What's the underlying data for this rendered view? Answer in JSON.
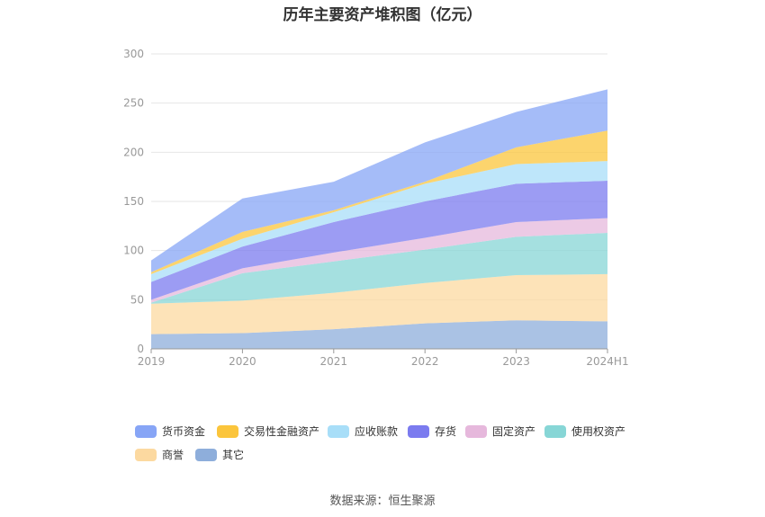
{
  "title": "历年主要资产堆积图（亿元）",
  "source": "数据来源：恒生聚源",
  "chart_data": {
    "type": "area",
    "stacked": true,
    "title": "历年主要资产堆积图（亿元）",
    "xlabel": "",
    "ylabel": "",
    "ylim": [
      0,
      300
    ],
    "yticks": [
      0,
      50,
      100,
      150,
      200,
      250,
      300
    ],
    "grid": true,
    "legend_position": "bottom",
    "categories": [
      "2019",
      "2020",
      "2021",
      "2022",
      "2023",
      "2024H1"
    ],
    "series": [
      {
        "name": "其它",
        "color": "#8eaedb",
        "values": [
          15,
          16,
          20,
          26,
          29,
          28
        ]
      },
      {
        "name": "商誉",
        "color": "#fcd9a0",
        "values": [
          31,
          33,
          37,
          41,
          46,
          48
        ]
      },
      {
        "name": "使用权资产",
        "color": "#87d6d6",
        "values": [
          1,
          28,
          32,
          34,
          39,
          42
        ]
      },
      {
        "name": "固定资产",
        "color": "#e6b8dc",
        "values": [
          3,
          5,
          9,
          12,
          15,
          15
        ]
      },
      {
        "name": "存货",
        "color": "#7b7bef",
        "values": [
          18,
          22,
          31,
          37,
          39,
          38
        ]
      },
      {
        "name": "应收账款",
        "color": "#a8def8",
        "values": [
          8,
          8,
          10,
          18,
          20,
          20
        ]
      },
      {
        "name": "交易性金融资产",
        "color": "#fbc53c",
        "values": [
          2,
          7,
          2,
          2,
          17,
          31
        ]
      },
      {
        "name": "货币资金",
        "color": "#87a5f6",
        "values": [
          12,
          34,
          29,
          40,
          36,
          42
        ]
      }
    ]
  },
  "legend": [
    {
      "name": "货币资金",
      "color": "#87a5f6"
    },
    {
      "name": "交易性金融资产",
      "color": "#fbc53c"
    },
    {
      "name": "应收账款",
      "color": "#a8def8"
    },
    {
      "name": "存货",
      "color": "#7b7bef"
    },
    {
      "name": "固定资产",
      "color": "#e6b8dc"
    },
    {
      "name": "使用权资产",
      "color": "#87d6d6"
    },
    {
      "name": "商誉",
      "color": "#fcd9a0"
    },
    {
      "name": "其它",
      "color": "#8eaedb"
    }
  ]
}
